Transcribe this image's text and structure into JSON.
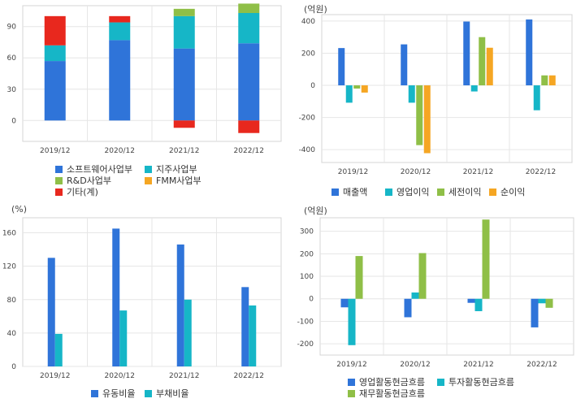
{
  "chart_data": [
    {
      "id": "segment",
      "type": "bar",
      "stacked": true,
      "unit": "",
      "categories": [
        "2019/12",
        "2020/12",
        "2021/12",
        "2022/12"
      ],
      "ylim": [
        -20,
        110
      ],
      "yticks": [
        0,
        30,
        60,
        90
      ],
      "grid": true,
      "legend_position": "bottom",
      "series": [
        {
          "name": "소프트웨어사업부",
          "color": "#2f74d9",
          "values": [
            57,
            77,
            69,
            74
          ]
        },
        {
          "name": "지주사업부",
          "color": "#16b6c7",
          "values": [
            15,
            17,
            31,
            29
          ]
        },
        {
          "name": "R&D사업부",
          "color": "#8fbf47",
          "values": [
            0,
            0,
            7,
            9
          ]
        },
        {
          "name": "FMM사업부",
          "color": "#f5a623",
          "values": [
            0,
            0,
            0,
            0
          ]
        },
        {
          "name": "기타(계)",
          "color": "#e8281e",
          "values": [
            28,
            6,
            -7,
            -12
          ]
        }
      ]
    },
    {
      "id": "profit",
      "type": "bar",
      "unit": "(억원)",
      "categories": [
        "2019/12",
        "2020/12",
        "2021/12",
        "2022/12"
      ],
      "ylim": [
        -480,
        440
      ],
      "yticks": [
        -400,
        -200,
        0,
        200,
        400
      ],
      "grid": true,
      "legend_position": "bottom",
      "series": [
        {
          "name": "매출액",
          "color": "#2f74d9",
          "values": [
            232,
            255,
            397,
            410
          ]
        },
        {
          "name": "영업이익",
          "color": "#16b6c7",
          "values": [
            -108,
            -108,
            -38,
            -155
          ]
        },
        {
          "name": "세전이익",
          "color": "#8fbf47",
          "values": [
            -20,
            -372,
            300,
            62
          ]
        },
        {
          "name": "순이익",
          "color": "#f5a623",
          "values": [
            -45,
            -422,
            234,
            62
          ]
        }
      ]
    },
    {
      "id": "ratio",
      "type": "bar",
      "unit": "(%)",
      "categories": [
        "2019/12",
        "2020/12",
        "2021/12",
        "2022/12"
      ],
      "ylim": [
        0,
        178
      ],
      "yticks": [
        0,
        40,
        80,
        120,
        160
      ],
      "grid": true,
      "legend_position": "bottom",
      "series": [
        {
          "name": "유동비율",
          "color": "#2f74d9",
          "values": [
            130,
            165,
            146,
            95
          ]
        },
        {
          "name": "부채비율",
          "color": "#16b6c7",
          "values": [
            39,
            67,
            80,
            73
          ]
        }
      ]
    },
    {
      "id": "cashflow",
      "type": "bar",
      "unit": "(억원)",
      "categories": [
        "2019/12",
        "2020/12",
        "2021/12",
        "2022/12"
      ],
      "ylim": [
        -250,
        360
      ],
      "yticks": [
        -200,
        -100,
        0,
        100,
        200,
        300
      ],
      "grid": true,
      "legend_position": "bottom",
      "series": [
        {
          "name": "영업활동현금흐름",
          "color": "#2f74d9",
          "values": [
            -38,
            -82,
            -18,
            -127
          ]
        },
        {
          "name": "투자활동현금흐름",
          "color": "#16b6c7",
          "values": [
            -206,
            28,
            -55,
            -20
          ]
        },
        {
          "name": "재무활동현금흐름",
          "color": "#8fbf47",
          "values": [
            190,
            203,
            352,
            -40
          ]
        }
      ]
    }
  ]
}
